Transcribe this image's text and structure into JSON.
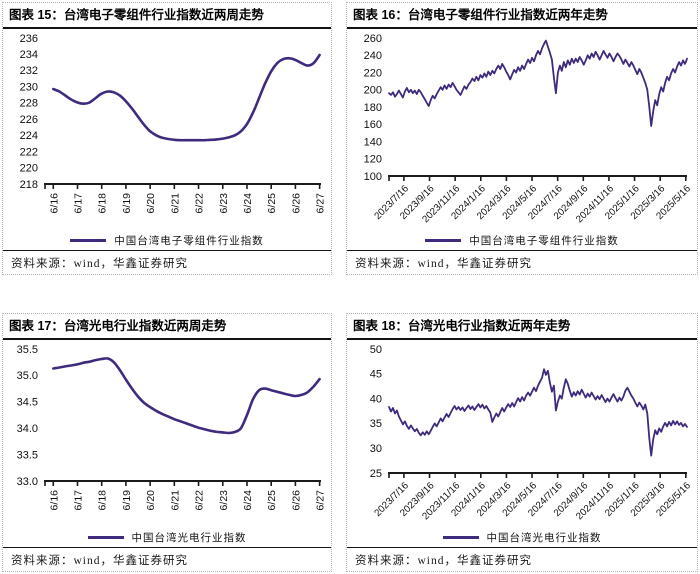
{
  "accent_color": "#3f2a7d",
  "axis_color": "#1a1a1a",
  "chart_data": [
    {
      "id": "figure-15",
      "type": "line",
      "title": "图表 15：台湾电子零组件行业指数近两周走势",
      "source": "资料来源：wind，华鑫证券研究",
      "xlabel": "",
      "ylabel": "",
      "ylim": [
        218,
        236
      ],
      "y_ticks": [
        218,
        220,
        222,
        224,
        226,
        228,
        230,
        232,
        234,
        236
      ],
      "y_tick_labels": [
        "218",
        "220",
        "222",
        "224",
        "226",
        "228",
        "230",
        "232",
        "234",
        "236"
      ],
      "x_ticks": [
        "6/16",
        "6/17",
        "6/18",
        "6/19",
        "6/20",
        "6/21",
        "6/22",
        "6/23",
        "6/24",
        "6/25",
        "6/26",
        "6/27"
      ],
      "x_tick_style": "vertical",
      "grid": false,
      "legend_position": "bottom",
      "smooth": true,
      "data_span": "ticks",
      "tick_start": 0.03,
      "tick_end": 0.995,
      "line_color": "#3f2a7d",
      "line_width": 2.6,
      "series": [
        {
          "name": "中国台湾电子零组件行业指数",
          "values": [
            229.7,
            229.4,
            228.9,
            228.4,
            228.05,
            227.9,
            228.05,
            228.6,
            229.15,
            229.4,
            229.3,
            228.9,
            228.2,
            227.3,
            226.3,
            225.3,
            224.5,
            224.0,
            223.7,
            223.55,
            223.45,
            223.4,
            223.4,
            223.4,
            223.4,
            223.4,
            223.45,
            223.5,
            223.6,
            223.75,
            224.0,
            224.5,
            225.4,
            226.8,
            228.6,
            230.4,
            231.9,
            232.9,
            233.4,
            233.5,
            233.3,
            232.9,
            232.6,
            232.9,
            233.9
          ]
        }
      ]
    },
    {
      "id": "figure-16",
      "type": "line",
      "title": "图表 16：台湾电子零组件行业指数近两年走势",
      "source": "资料来源：wind，华鑫证券研究",
      "xlabel": "",
      "ylabel": "",
      "ylim": [
        100,
        260
      ],
      "y_ticks": [
        100,
        120,
        140,
        160,
        180,
        200,
        220,
        240,
        260
      ],
      "y_tick_labels": [
        "100",
        "120",
        "140",
        "160",
        "180",
        "200",
        "220",
        "240",
        "260"
      ],
      "x_ticks": [
        "2023/7/16",
        "2023/9/16",
        "2023/11/16",
        "2024/1/16",
        "2024/3/16",
        "2024/5/16",
        "2024/7/16",
        "2024/9/16",
        "2024/11/16",
        "2025/1/16",
        "2025/3/16",
        "2025/5/16"
      ],
      "x_tick_style": "diagonal",
      "grid": false,
      "legend_position": "bottom",
      "smooth": false,
      "data_span": "full",
      "tick_start": 0.05,
      "tick_end": 0.996,
      "line_color": "#3f2a7d",
      "line_width": 1.8,
      "series": [
        {
          "name": "中国台湾电子零组件行业指数",
          "values": [
            196,
            194,
            197,
            192,
            195,
            199,
            195,
            191,
            198,
            202,
            197,
            200,
            196,
            199,
            195,
            200,
            197,
            193,
            189,
            185,
            181,
            188,
            193,
            190,
            195,
            199,
            203,
            200,
            205,
            201,
            206,
            203,
            208,
            204,
            200,
            197,
            194,
            199,
            204,
            201,
            206,
            209,
            213,
            210,
            215,
            211,
            217,
            214,
            219,
            215,
            221,
            217,
            222,
            219,
            224,
            228,
            224,
            230,
            226,
            221,
            217,
            212,
            218,
            223,
            220,
            226,
            222,
            228,
            224,
            230,
            235,
            231,
            237,
            233,
            240,
            245,
            241,
            248,
            253,
            257,
            250,
            243,
            235,
            214,
            196,
            220,
            228,
            222,
            232,
            226,
            234,
            229,
            236,
            231,
            236,
            232,
            238,
            234,
            229,
            234,
            240,
            236,
            242,
            238,
            244,
            240,
            235,
            240,
            245,
            241,
            237,
            242,
            238,
            233,
            238,
            242,
            239,
            235,
            230,
            235,
            231,
            227,
            232,
            228,
            223,
            218,
            224,
            220,
            214,
            208,
            200,
            180,
            158,
            175,
            188,
            182,
            195,
            203,
            198,
            208,
            215,
            211,
            219,
            224,
            220,
            227,
            232,
            228,
            234,
            230,
            236
          ]
        }
      ]
    },
    {
      "id": "figure-17",
      "type": "line",
      "title": "图表 17：台湾光电行业指数近两周走势",
      "source": "资料来源：wind，华鑫证券研究",
      "xlabel": "",
      "ylabel": "",
      "ylim": [
        33.0,
        35.5
      ],
      "y_ticks": [
        33.0,
        33.5,
        34.0,
        34.5,
        35.0,
        35.5
      ],
      "y_tick_labels": [
        "33.0",
        "33.5",
        "34.0",
        "34.5",
        "35.0",
        "35.5"
      ],
      "x_ticks": [
        "6/16",
        "6/17",
        "6/18",
        "6/19",
        "6/20",
        "6/21",
        "6/22",
        "6/23",
        "6/24",
        "6/25",
        "6/26",
        "6/27"
      ],
      "x_tick_style": "vertical",
      "grid": false,
      "legend_position": "bottom",
      "smooth": true,
      "data_span": "ticks",
      "tick_start": 0.03,
      "tick_end": 0.995,
      "line_color": "#3f2a7d",
      "line_width": 2.6,
      "series": [
        {
          "name": "中国台湾光电行业指数",
          "values": [
            35.13,
            35.15,
            35.17,
            35.19,
            35.21,
            35.24,
            35.26,
            35.29,
            35.31,
            35.32,
            35.25,
            35.1,
            34.92,
            34.75,
            34.6,
            34.48,
            34.4,
            34.33,
            34.27,
            34.22,
            34.17,
            34.13,
            34.09,
            34.05,
            34.01,
            33.98,
            33.95,
            33.93,
            33.92,
            33.91,
            33.93,
            34.0,
            34.25,
            34.55,
            34.72,
            34.75,
            34.72,
            34.69,
            34.66,
            34.63,
            34.61,
            34.63,
            34.68,
            34.79,
            34.93
          ]
        }
      ]
    },
    {
      "id": "figure-18",
      "type": "line",
      "title": "图表 18：台湾光电行业指数近两年走势",
      "source": "资料来源：wind，华鑫证券研究",
      "xlabel": "",
      "ylabel": "",
      "ylim": [
        25,
        50
      ],
      "y_ticks": [
        25,
        30,
        35,
        40,
        45,
        50
      ],
      "y_tick_labels": [
        "25",
        "30",
        "35",
        "40",
        "45",
        "50"
      ],
      "x_ticks": [
        "2023/7/16",
        "2023/9/16",
        "2023/11/16",
        "2024/1/16",
        "2024/3/16",
        "2024/5/16",
        "2024/7/16",
        "2024/9/16",
        "2024/11/16",
        "2025/1/16",
        "2025/3/16",
        "2025/5/16"
      ],
      "x_tick_style": "diagonal",
      "grid": false,
      "legend_position": "bottom",
      "smooth": false,
      "data_span": "full",
      "tick_start": 0.05,
      "tick_end": 0.996,
      "line_color": "#3f2a7d",
      "line_width": 1.8,
      "series": [
        {
          "name": "中国台湾光电行业指数",
          "values": [
            38.3,
            37.4,
            38.1,
            37.0,
            37.6,
            36.4,
            35.6,
            34.8,
            35.4,
            34.5,
            33.9,
            34.6,
            34.0,
            33.4,
            33.9,
            33.1,
            32.6,
            33.2,
            32.7,
            33.4,
            32.8,
            33.5,
            34.3,
            35.0,
            34.4,
            35.2,
            36.0,
            35.4,
            36.2,
            36.9,
            36.3,
            37.1,
            37.9,
            38.5,
            37.8,
            38.3,
            37.7,
            38.2,
            37.5,
            38.1,
            38.6,
            37.9,
            38.4,
            37.7,
            38.3,
            38.9,
            38.2,
            38.8,
            38.0,
            38.5,
            37.8,
            37.2,
            35.3,
            36.2,
            37.0,
            36.4,
            37.3,
            38.1,
            37.4,
            38.2,
            38.9,
            38.3,
            39.1,
            38.4,
            39.3,
            40.1,
            39.4,
            40.3,
            39.6,
            40.6,
            41.2,
            40.6,
            41.4,
            42.2,
            41.5,
            42.6,
            43.4,
            44.2,
            45.9,
            44.8,
            45.6,
            43.2,
            41.4,
            42.6,
            37.6,
            39.4,
            40.6,
            40.0,
            42.2,
            43.9,
            43.0,
            41.6,
            40.4,
            41.3,
            40.6,
            41.5,
            40.8,
            41.8,
            41.0,
            40.2,
            41.0,
            40.4,
            41.2,
            40.5,
            39.8,
            40.5,
            39.9,
            40.7,
            40.0,
            39.3,
            40.0,
            39.4,
            40.2,
            40.9,
            40.1,
            39.4,
            40.2,
            39.6,
            40.4,
            41.6,
            42.2,
            41.4,
            40.6,
            40.0,
            39.2,
            38.4,
            39.2,
            38.6,
            37.8,
            38.8,
            37.0,
            32.0,
            28.5,
            31.8,
            33.6,
            32.8,
            34.0,
            33.3,
            34.4,
            35.1,
            34.4,
            35.3,
            34.6,
            35.5,
            34.8,
            35.4,
            34.7,
            35.1,
            34.4,
            34.9,
            34.3
          ]
        }
      ]
    }
  ]
}
